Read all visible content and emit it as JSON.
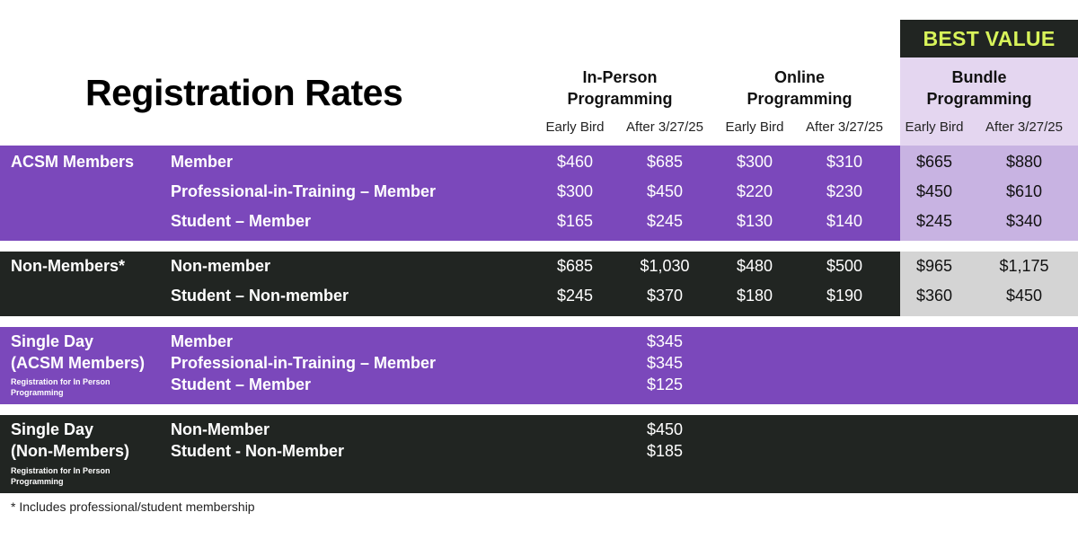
{
  "title": "Registration Rates",
  "best_value": "BEST VALUE",
  "groups": [
    {
      "line1": "In-Person",
      "line2": "Programming"
    },
    {
      "line1": "Online",
      "line2": "Programming"
    },
    {
      "line1": "Bundle",
      "line2": "Programming"
    }
  ],
  "sub_headers": [
    "Early Bird",
    "After 3/27/25",
    "Early Bird",
    "After 3/27/25",
    "Early Bird",
    "After 3/27/25"
  ],
  "acsm": {
    "category": "ACSM Members",
    "rows": [
      {
        "label": "Member",
        "prices": [
          "$460",
          "$685",
          "$300",
          "$310",
          "$665",
          "$880"
        ]
      },
      {
        "label": "Professional-in-Training – Member",
        "prices": [
          "$300",
          "$450",
          "$220",
          "$230",
          "$450",
          "$610"
        ]
      },
      {
        "label": "Student – Member",
        "prices": [
          "$165",
          "$245",
          "$130",
          "$140",
          "$245",
          "$340"
        ]
      }
    ]
  },
  "nonmembers": {
    "category": "Non-Members*",
    "rows": [
      {
        "label": "Non-member",
        "prices": [
          "$685",
          "$1,030",
          "$480",
          "$500",
          "$965",
          "$1,175"
        ]
      },
      {
        "label": "Student – Non-member",
        "prices": [
          "$245",
          "$370",
          "$180",
          "$190",
          "$360",
          "$450"
        ]
      }
    ]
  },
  "single_acsm": {
    "category_line1": "Single Day",
    "category_line2": "(ACSM Members)",
    "note_line1": "Registration for In Person",
    "note_line2": "Programming",
    "rows": [
      {
        "label": "Member",
        "price": "$345"
      },
      {
        "label": "Professional-in-Training – Member",
        "price": "$345"
      },
      {
        "label": "Student – Member",
        "price": "$125"
      }
    ]
  },
  "single_non": {
    "category_line1": "Single Day",
    "category_line2": "(Non-Members)",
    "note_line1": "Registration for In Person",
    "note_line2": "Programming",
    "rows": [
      {
        "label": "Non-Member",
        "price": "$450"
      },
      {
        "label": "Student - Non-Member",
        "price": "$185"
      }
    ]
  },
  "footnote": "* Includes professional/student membership",
  "colors": {
    "purple": "#7b48bb",
    "dark": "#212522",
    "lilac": "#c8b3e2",
    "lilac_light": "#e4d6f0",
    "grey": "#d4d4d4",
    "best_value_text": "#d8f45a"
  }
}
